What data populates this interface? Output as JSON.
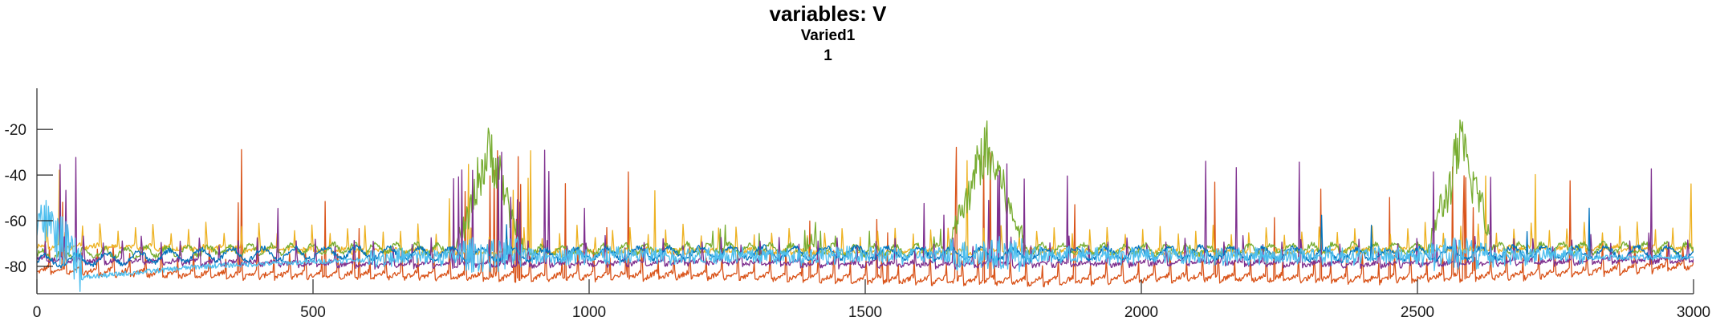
{
  "chart_data": {
    "type": "line",
    "title": "variables: V",
    "subtitle": "Varied1",
    "subsubtitle": "1",
    "xlabel": "",
    "ylabel": "",
    "xlim": [
      0,
      3000
    ],
    "ylim": [
      -92,
      -2
    ],
    "xticks": [
      0,
      500,
      1000,
      1500,
      2000,
      2500,
      3000
    ],
    "yticks": [
      -80,
      -60,
      -40,
      -20
    ],
    "xtick_labels": [
      "0",
      "500",
      "1000",
      "1500",
      "2000",
      "2500",
      "3000"
    ],
    "ytick_labels": [
      "-80",
      "-60",
      "-40",
      "-20"
    ],
    "grid": false,
    "legend": "none",
    "bursts": [
      [
        760,
        880
      ],
      [
        1650,
        1790
      ],
      [
        2520,
        2640
      ]
    ],
    "series": [
      {
        "color": "#0072BD",
        "x": [
          0,
          300,
          600,
          900,
          1200,
          1500,
          1800,
          2100,
          2400,
          2700,
          3000
        ],
        "y": [
          -78,
          -75,
          -74,
          -75,
          -74,
          -74,
          -75,
          -74,
          -75,
          -74,
          -74
        ]
      },
      {
        "color": "#D95319",
        "x": [
          0,
          300,
          600,
          900,
          1200,
          1500,
          1800,
          2100,
          2400,
          2700,
          3000
        ],
        "y": [
          -80,
          -82,
          -82,
          -83,
          -82,
          -84,
          -85,
          -83,
          -84,
          -82,
          -78
        ]
      },
      {
        "color": "#EDB120",
        "x": [
          0,
          300,
          600,
          900,
          1200,
          1500,
          1800,
          2100,
          2400,
          2700,
          3000
        ],
        "y": [
          -70,
          -71,
          -72,
          -73,
          -72,
          -73,
          -72,
          -73,
          -72,
          -71,
          -71
        ]
      },
      {
        "color": "#7E2F8E",
        "x": [
          0,
          300,
          600,
          900,
          1200,
          1500,
          1800,
          2100,
          2400,
          2700,
          3000
        ],
        "y": [
          -76,
          -77,
          -78,
          -78,
          -77,
          -78,
          -78,
          -77,
          -78,
          -77,
          -76
        ]
      },
      {
        "color": "#77AC30",
        "x": [
          0,
          300,
          600,
          900,
          1200,
          1500,
          1800,
          2100,
          2400,
          2700,
          3000
        ],
        "y": [
          -75,
          -73,
          -72,
          -73,
          -72,
          -73,
          -72,
          -73,
          -72,
          -72,
          -72
        ]
      },
      {
        "color": "#4DBEEE",
        "x": [
          0,
          80,
          300,
          600,
          900,
          1200,
          1500,
          1800,
          2100,
          2400,
          2700,
          3000
        ],
        "y": [
          -60,
          -85,
          -80,
          -77,
          -76,
          -76,
          -76,
          -76,
          -76,
          -76,
          -76,
          -76
        ]
      }
    ]
  }
}
